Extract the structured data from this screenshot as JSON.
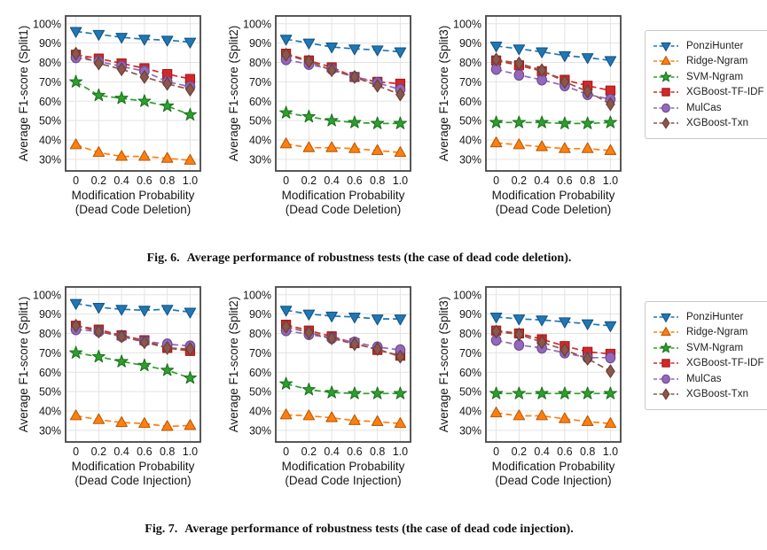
{
  "page": {
    "background": "#ffffff"
  },
  "figures": [
    {
      "caption_label": "Fig. 6.",
      "caption_text": "Average performance of robustness tests (the case of dead code deletion)."
    },
    {
      "caption_label": "Fig. 7.",
      "caption_text": "Average performance of robustness tests (the case of dead code injection)."
    }
  ],
  "legend": {
    "position": "right",
    "entries": [
      {
        "label": "PonziHunter",
        "color": "#1f77b4",
        "marker": "triangle-down"
      },
      {
        "label": "Ridge-Ngram",
        "color": "#ff7f0e",
        "marker": "triangle-up"
      },
      {
        "label": "SVM-Ngram",
        "color": "#2ca02c",
        "marker": "star"
      },
      {
        "label": "XGBoost-TF-IDF",
        "color": "#d62728",
        "marker": "square"
      },
      {
        "label": "MulCas",
        "color": "#9467bd",
        "marker": "circle"
      },
      {
        "label": "XGBoost-Txn",
        "color": "#8c564b",
        "marker": "diamond"
      }
    ]
  },
  "chart_data": [
    {
      "type": "line",
      "ylabel": "Average F1-score (Split1)",
      "xlabel_line1": "Modification Probability",
      "xlabel_line2": "(Dead Code Deletion)",
      "x": [
        0,
        0.2,
        0.4,
        0.6,
        0.8,
        1.0
      ],
      "x_tick_labels": [
        "0",
        "0.2",
        "0.4",
        "0.6",
        "0.8",
        "1.0"
      ],
      "y_ticks": [
        30,
        40,
        50,
        60,
        70,
        80,
        90,
        100
      ],
      "y_tick_suffix": "%",
      "xlim": [
        -0.09,
        1.09
      ],
      "ylim": [
        24,
        104
      ],
      "grid": true,
      "line_style": "dashed",
      "series": [
        {
          "name": "PonziHunter",
          "values": [
            96,
            94.5,
            93,
            92,
            91.5,
            90.5
          ]
        },
        {
          "name": "Ridge-Ngram",
          "values": [
            37.5,
            33.5,
            31.5,
            31.5,
            30.5,
            29.5
          ]
        },
        {
          "name": "SVM-Ngram",
          "values": [
            70,
            63,
            61.5,
            60,
            57.5,
            53
          ]
        },
        {
          "name": "XGBoost-TF-IDF",
          "values": [
            84,
            82,
            79.5,
            77,
            74,
            71.5
          ]
        },
        {
          "name": "MulCas",
          "values": [
            82.5,
            80.5,
            78,
            75.5,
            70,
            67.5
          ]
        },
        {
          "name": "XGBoost-Txn",
          "values": [
            84.5,
            79.5,
            76.5,
            72.5,
            69,
            66
          ]
        }
      ]
    },
    {
      "type": "line",
      "ylabel": "Average F1-score (Split2)",
      "xlabel_line1": "Modification Probability",
      "xlabel_line2": "(Dead Code Deletion)",
      "x": [
        0,
        0.2,
        0.4,
        0.6,
        0.8,
        1.0
      ],
      "x_tick_labels": [
        "0",
        "0.2",
        "0.4",
        "0.6",
        "0.8",
        "1.0"
      ],
      "y_ticks": [
        30,
        40,
        50,
        60,
        70,
        80,
        90,
        100
      ],
      "y_tick_suffix": "%",
      "xlim": [
        -0.09,
        1.09
      ],
      "ylim": [
        24,
        104
      ],
      "grid": true,
      "line_style": "dashed",
      "series": [
        {
          "name": "PonziHunter",
          "values": [
            92,
            90,
            88,
            87,
            86.5,
            85.5
          ]
        },
        {
          "name": "Ridge-Ngram",
          "values": [
            38,
            36,
            36,
            35.5,
            34.5,
            33.5
          ]
        },
        {
          "name": "SVM-Ngram",
          "values": [
            54,
            52,
            50,
            49,
            48.5,
            48.5
          ]
        },
        {
          "name": "XGBoost-TF-IDF",
          "values": [
            84.5,
            81,
            77.5,
            72.5,
            70,
            69
          ]
        },
        {
          "name": "MulCas",
          "values": [
            81.5,
            79,
            76.5,
            72.5,
            69.5,
            66
          ]
        },
        {
          "name": "XGBoost-Txn",
          "values": [
            84,
            80.5,
            76,
            72.5,
            68,
            63.5
          ]
        }
      ]
    },
    {
      "type": "line",
      "ylabel": "Average F1-score (Split3)",
      "xlabel_line1": "Modification Probability",
      "xlabel_line2": "(Dead Code Deletion)",
      "x": [
        0,
        0.2,
        0.4,
        0.6,
        0.8,
        1.0
      ],
      "x_tick_labels": [
        "0",
        "0.2",
        "0.4",
        "0.6",
        "0.8",
        "1.0"
      ],
      "y_ticks": [
        30,
        40,
        50,
        60,
        70,
        80,
        90,
        100
      ],
      "y_tick_suffix": "%",
      "xlim": [
        -0.09,
        1.09
      ],
      "ylim": [
        24,
        104
      ],
      "grid": true,
      "line_style": "dashed",
      "series": [
        {
          "name": "PonziHunter",
          "values": [
            88.5,
            87,
            85.5,
            83.5,
            82.5,
            81
          ]
        },
        {
          "name": "Ridge-Ngram",
          "values": [
            38.5,
            37.5,
            36.5,
            35.5,
            35.5,
            34.5
          ]
        },
        {
          "name": "SVM-Ngram",
          "values": [
            49,
            49,
            49,
            48.5,
            48.5,
            49
          ]
        },
        {
          "name": "XGBoost-TF-IDF",
          "values": [
            81,
            78.5,
            75.5,
            71,
            68,
            65.5
          ]
        },
        {
          "name": "MulCas",
          "values": [
            76.5,
            73.5,
            71,
            68,
            63.5,
            61
          ]
        },
        {
          "name": "XGBoost-Txn",
          "values": [
            81.5,
            79.5,
            76,
            70,
            65,
            58.5
          ]
        }
      ]
    },
    {
      "type": "line",
      "ylabel": "Average F1-score (Split1)",
      "xlabel_line1": "Modification Probability",
      "xlabel_line2": "(Dead Code Injection)",
      "x": [
        0,
        0.2,
        0.4,
        0.6,
        0.8,
        1.0
      ],
      "x_tick_labels": [
        "0",
        "0.2",
        "0.4",
        "0.6",
        "0.8",
        "1.0"
      ],
      "y_ticks": [
        30,
        40,
        50,
        60,
        70,
        80,
        90,
        100
      ],
      "y_tick_suffix": "%",
      "xlim": [
        -0.09,
        1.09
      ],
      "ylim": [
        24,
        104
      ],
      "grid": true,
      "line_style": "dashed",
      "series": [
        {
          "name": "PonziHunter",
          "values": [
            95.5,
            93.5,
            92.5,
            92,
            92.5,
            91
          ]
        },
        {
          "name": "Ridge-Ngram",
          "values": [
            37.5,
            35.5,
            34,
            33.5,
            32,
            32.5
          ]
        },
        {
          "name": "SVM-Ngram",
          "values": [
            70,
            68,
            65.5,
            63.5,
            61,
            57
          ]
        },
        {
          "name": "XGBoost-TF-IDF",
          "values": [
            84,
            82,
            79,
            76.5,
            72.5,
            71
          ]
        },
        {
          "name": "MulCas",
          "values": [
            82,
            81,
            78.5,
            76,
            74.5,
            73.5
          ]
        },
        {
          "name": "XGBoost-Txn",
          "values": [
            84,
            81,
            78.5,
            75.5,
            72.5,
            72
          ]
        }
      ]
    },
    {
      "type": "line",
      "ylabel": "Average F1-score (Split2)",
      "xlabel_line1": "Modification Probability",
      "xlabel_line2": "(Dead Code Injection)",
      "x": [
        0,
        0.2,
        0.4,
        0.6,
        0.8,
        1.0
      ],
      "x_tick_labels": [
        "0",
        "0.2",
        "0.4",
        "0.6",
        "0.8",
        "1.0"
      ],
      "y_ticks": [
        30,
        40,
        50,
        60,
        70,
        80,
        90,
        100
      ],
      "y_tick_suffix": "%",
      "xlim": [
        -0.09,
        1.09
      ],
      "ylim": [
        24,
        104
      ],
      "grid": true,
      "line_style": "dashed",
      "series": [
        {
          "name": "PonziHunter",
          "values": [
            92,
            90,
            89,
            88.5,
            87.5,
            87.5
          ]
        },
        {
          "name": "Ridge-Ngram",
          "values": [
            38,
            37.5,
            36.5,
            35,
            34.5,
            33.5
          ]
        },
        {
          "name": "SVM-Ngram",
          "values": [
            54,
            51,
            49.5,
            49,
            49,
            49
          ]
        },
        {
          "name": "XGBoost-TF-IDF",
          "values": [
            84.5,
            81.5,
            78.5,
            75,
            71.5,
            68.5
          ]
        },
        {
          "name": "MulCas",
          "values": [
            81.5,
            79.5,
            77.5,
            75.5,
            73,
            71.5
          ]
        },
        {
          "name": "XGBoost-Txn",
          "values": [
            83.5,
            80.5,
            77.5,
            74.5,
            72,
            68
          ]
        }
      ]
    },
    {
      "type": "line",
      "ylabel": "Average F1-score (Split3)",
      "xlabel_line1": "Modification Probability",
      "xlabel_line2": "(Dead Code Injection)",
      "x": [
        0,
        0.2,
        0.4,
        0.6,
        0.8,
        1.0
      ],
      "x_tick_labels": [
        "0",
        "0.2",
        "0.4",
        "0.6",
        "0.8",
        "1.0"
      ],
      "y_ticks": [
        30,
        40,
        50,
        60,
        70,
        80,
        90,
        100
      ],
      "y_tick_suffix": "%",
      "xlim": [
        -0.09,
        1.09
      ],
      "ylim": [
        24,
        104
      ],
      "grid": true,
      "line_style": "dashed",
      "series": [
        {
          "name": "PonziHunter",
          "values": [
            88.5,
            87.5,
            87,
            86,
            85,
            84
          ]
        },
        {
          "name": "Ridge-Ngram",
          "values": [
            39,
            37.5,
            37.5,
            36,
            34.5,
            33.5
          ]
        },
        {
          "name": "SVM-Ngram",
          "values": [
            49,
            49,
            49,
            49,
            49,
            49
          ]
        },
        {
          "name": "XGBoost-TF-IDF",
          "values": [
            81.5,
            80,
            77,
            73.5,
            70.5,
            69.5
          ]
        },
        {
          "name": "MulCas",
          "values": [
            76.5,
            74,
            72.5,
            70,
            67.5,
            67.5
          ]
        },
        {
          "name": "XGBoost-Txn",
          "values": [
            81,
            79.5,
            75.5,
            71.5,
            67,
            60.5
          ]
        }
      ]
    }
  ]
}
